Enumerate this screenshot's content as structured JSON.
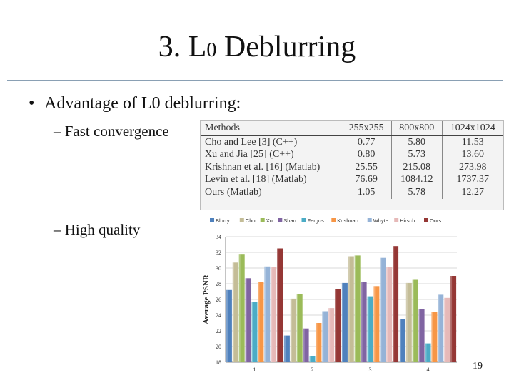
{
  "slide": {
    "title_main": "3. L",
    "title_sub": "0",
    "title_rest": " Deblurring",
    "bullet": "Advantage of L0 deblurring:",
    "bullet_glyph": "•",
    "sub_items": [
      "– Fast convergence",
      "– High quality"
    ],
    "page_number": "19"
  },
  "table": {
    "headers": [
      "Methods",
      "255x255",
      "800x800",
      "1024x1024"
    ],
    "rows": [
      [
        "Cho and Lee [3] (C++)",
        "0.77",
        "5.80",
        "11.53"
      ],
      [
        "Xu and Jia [25] (C++)",
        "0.80",
        "5.73",
        "13.60"
      ],
      [
        "Krishnan et al. [16] (Matlab)",
        "25.55",
        "215.08",
        "273.98"
      ],
      [
        "Levin et al. [18] (Matlab)",
        "76.69",
        "1084.12",
        "1737.37"
      ],
      [
        "Ours (Matlab)",
        "1.05",
        "5.78",
        "12.27"
      ]
    ]
  },
  "chart_data": {
    "type": "bar",
    "ylabel": "Average PSNR",
    "xlabel": "",
    "ylim": [
      18,
      34
    ],
    "yticks": [
      18,
      20,
      22,
      24,
      26,
      28,
      30,
      32,
      34
    ],
    "categories": [
      "1",
      "2",
      "3",
      "4"
    ],
    "grid": true,
    "legend_position": "top",
    "series": [
      {
        "name": "Blurry",
        "color": "#4f81bd",
        "values": [
          27.2,
          21.4,
          28.1,
          23.5
        ]
      },
      {
        "name": "Cho",
        "color": "#c4bd97",
        "values": [
          30.7,
          26.1,
          31.5,
          28.1
        ]
      },
      {
        "name": "Xu",
        "color": "#9bbb59",
        "values": [
          31.8,
          26.7,
          31.6,
          28.5
        ]
      },
      {
        "name": "Shan",
        "color": "#8064a2",
        "values": [
          28.7,
          22.3,
          28.2,
          24.8
        ]
      },
      {
        "name": "Fergus",
        "color": "#4bacc6",
        "values": [
          25.7,
          18.8,
          26.4,
          20.4
        ]
      },
      {
        "name": "Krishnan",
        "color": "#f79646",
        "values": [
          28.2,
          23.0,
          27.7,
          24.4
        ]
      },
      {
        "name": "Whyte",
        "color": "#95b3d7",
        "values": [
          30.2,
          24.5,
          31.3,
          26.6
        ]
      },
      {
        "name": "Hirsch",
        "color": "#e6b9b8",
        "values": [
          30.1,
          24.9,
          30.1,
          26.2
        ]
      },
      {
        "name": "Ours",
        "color": "#953735",
        "values": [
          32.5,
          27.3,
          32.8,
          29.0
        ]
      }
    ]
  }
}
